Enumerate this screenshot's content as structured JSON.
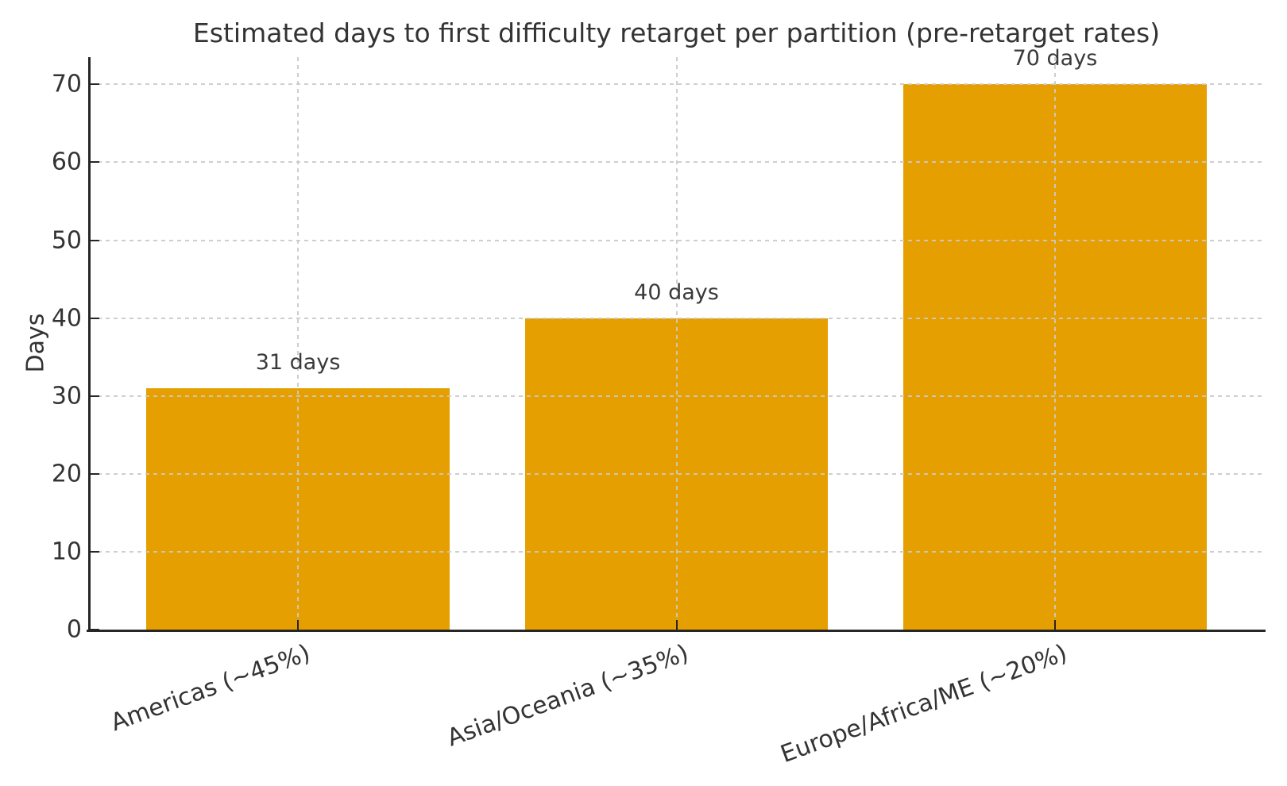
{
  "chart_data": {
    "type": "bar",
    "title": "Estimated days to first difficulty retarget per partition (pre-retarget rates)",
    "categories": [
      "Americas (~45%)",
      "Asia/Oceania (~35%)",
      "Europe/Africa/ME (~20%)"
    ],
    "values": [
      31,
      40,
      70
    ],
    "bar_labels": [
      "31 days",
      "40 days",
      "70 days"
    ],
    "xlabel": "",
    "ylabel": "Days",
    "yticks": [
      0,
      10,
      20,
      30,
      40,
      50,
      60,
      70
    ],
    "ylim": [
      0,
      73.5
    ],
    "bar_width_fraction": 0.8,
    "x_pad": 0.55,
    "x_tick_rotation_deg": 20,
    "grid": {
      "axis": "both",
      "line_style": "dashed",
      "color": "#c9c9c9"
    },
    "legend": "none",
    "colors": {
      "bar": "#E69F00",
      "text": "#333333",
      "spine": "#262626"
    }
  }
}
